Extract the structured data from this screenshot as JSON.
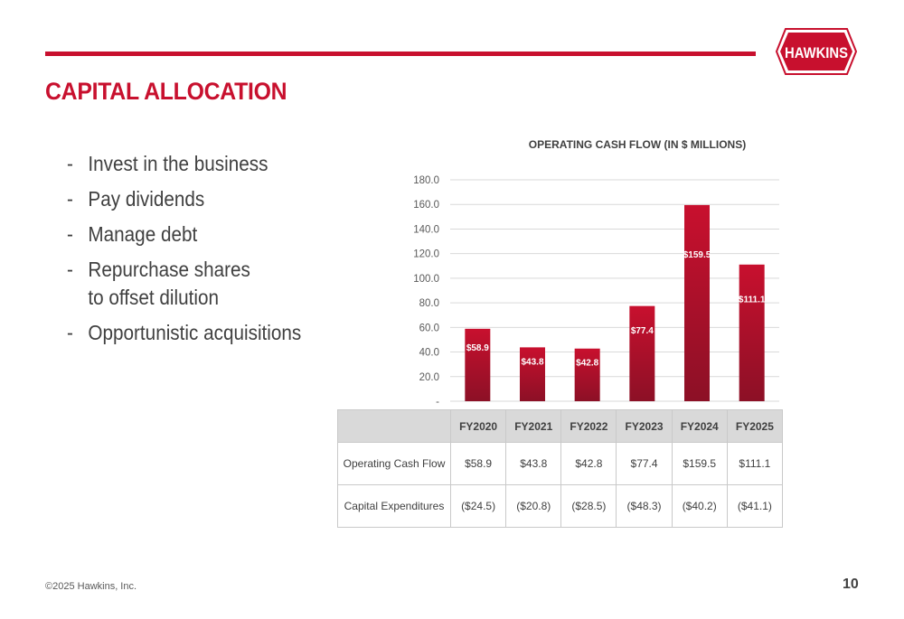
{
  "slide": {
    "title": "CAPITAL ALLOCATION",
    "logo_text": "HAWKINS",
    "bullets": [
      {
        "lines": [
          "Invest in the business"
        ]
      },
      {
        "lines": [
          "Pay dividends"
        ]
      },
      {
        "lines": [
          "Manage debt"
        ]
      },
      {
        "lines": [
          "Repurchase shares",
          "to offset dilution"
        ]
      },
      {
        "lines": [
          "Opportunistic acquisitions"
        ]
      }
    ],
    "copyright": "©2025 Hawkins, Inc.",
    "page_number": "10"
  },
  "colors": {
    "brand_red": "#c8102e",
    "bar_top": "#c8102e",
    "bar_bottom": "#8c1026"
  },
  "chart_data": {
    "type": "bar",
    "title": "OPERATING CASH FLOW (IN $ MILLIONS)",
    "categories": [
      "FY2020",
      "FY2021",
      "FY2022",
      "FY2023",
      "FY2024",
      "FY2025"
    ],
    "values": [
      58.9,
      43.8,
      42.8,
      77.4,
      159.5,
      111.1
    ],
    "data_labels": [
      "$58.9",
      "$43.8",
      "$42.8",
      "$77.4",
      "$159.5",
      "$111.1"
    ],
    "ylim": [
      0,
      180
    ],
    "yticks": [
      0,
      20,
      40,
      60,
      80,
      100,
      120,
      140,
      160,
      180
    ],
    "ytick_labels": [
      "-",
      "20.0",
      "40.0",
      "60.0",
      "80.0",
      "100.0",
      "120.0",
      "140.0",
      "160.0",
      "180.0"
    ],
    "grid": true,
    "xlabel": "",
    "ylabel": ""
  },
  "table": {
    "headers": [
      "",
      "FY2020",
      "FY2021",
      "FY2022",
      "FY2023",
      "FY2024",
      "FY2025"
    ],
    "rows": [
      {
        "label": "Operating Cash Flow",
        "values": [
          "$58.9",
          "$43.8",
          "$42.8",
          "$77.4",
          "$159.5",
          "$111.1"
        ]
      },
      {
        "label": "Capital Expenditures",
        "values": [
          "($24.5)",
          "($20.8)",
          "($28.5)",
          "($48.3)",
          "($40.2)",
          "($41.1)"
        ]
      }
    ]
  }
}
